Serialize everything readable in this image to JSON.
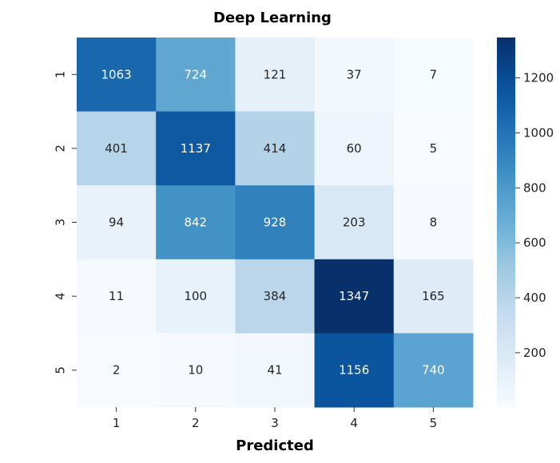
{
  "chart_data": {
    "type": "heatmap",
    "title": "Deep Learning",
    "xlabel": "Predicted",
    "ylabel": "",
    "x_categories": [
      "1",
      "2",
      "3",
      "4",
      "5"
    ],
    "y_categories": [
      "1",
      "2",
      "3",
      "4",
      "5"
    ],
    "values": [
      [
        1063,
        724,
        121,
        37,
        7
      ],
      [
        401,
        1137,
        414,
        60,
        5
      ],
      [
        94,
        842,
        928,
        203,
        8
      ],
      [
        11,
        100,
        384,
        1347,
        165
      ],
      [
        2,
        10,
        41,
        1156,
        740
      ]
    ],
    "colorscale": "Blues",
    "vmin": 2,
    "vmax": 1347,
    "colorbar_ticks": [
      200,
      400,
      600,
      800,
      1000,
      1200
    ]
  }
}
